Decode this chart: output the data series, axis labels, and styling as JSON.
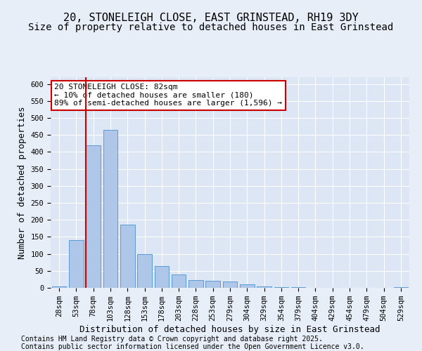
{
  "title_line1": "20, STONELEIGH CLOSE, EAST GRINSTEAD, RH19 3DY",
  "title_line2": "Size of property relative to detached houses in East Grinstead",
  "xlabel": "Distribution of detached houses by size in East Grinstead",
  "ylabel": "Number of detached properties",
  "categories": [
    "28sqm",
    "53sqm",
    "78sqm",
    "103sqm",
    "128sqm",
    "153sqm",
    "178sqm",
    "203sqm",
    "228sqm",
    "253sqm",
    "279sqm",
    "304sqm",
    "329sqm",
    "354sqm",
    "379sqm",
    "404sqm",
    "429sqm",
    "454sqm",
    "479sqm",
    "504sqm",
    "529sqm"
  ],
  "values": [
    5,
    140,
    420,
    465,
    185,
    100,
    65,
    40,
    22,
    20,
    18,
    10,
    5,
    3,
    2,
    1,
    0,
    0,
    0,
    0,
    3
  ],
  "bar_color": "#aec6e8",
  "bar_edge_color": "#5b9bd5",
  "vline_index": 2,
  "vline_color": "#cc0000",
  "annotation_text": "20 STONELEIGH CLOSE: 82sqm\n← 10% of detached houses are smaller (180)\n89% of semi-detached houses are larger (1,596) →",
  "annotation_box_color": "#ffffff",
  "annotation_box_edge": "#cc0000",
  "ylim": [
    0,
    620
  ],
  "yticks": [
    0,
    50,
    100,
    150,
    200,
    250,
    300,
    350,
    400,
    450,
    500,
    550,
    600
  ],
  "background_color": "#e8eef7",
  "plot_bg_color": "#dce6f4",
  "grid_color": "#ffffff",
  "footer_line1": "Contains HM Land Registry data © Crown copyright and database right 2025.",
  "footer_line2": "Contains public sector information licensed under the Open Government Licence v3.0.",
  "title_fontsize": 11,
  "subtitle_fontsize": 10,
  "axis_label_fontsize": 9,
  "tick_fontsize": 7.5,
  "annotation_fontsize": 8,
  "footer_fontsize": 7
}
